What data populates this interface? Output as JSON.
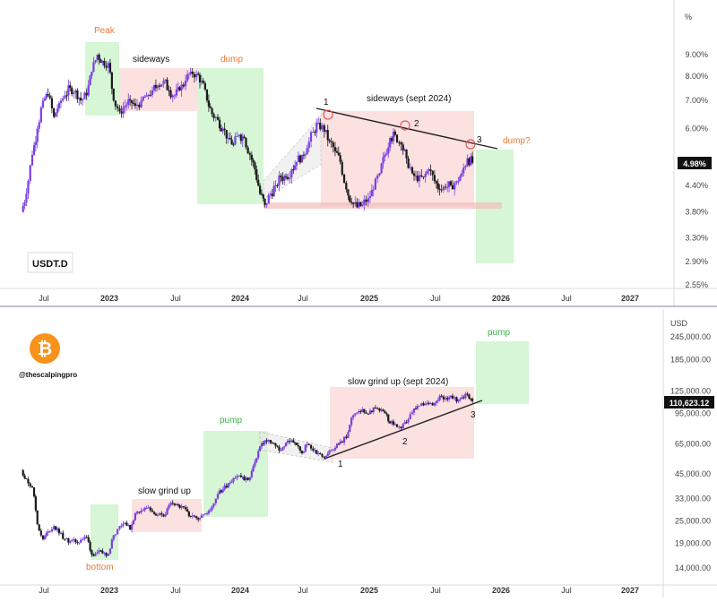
{
  "chart_data": [
    {
      "type": "candlestick",
      "title": "USDT.D",
      "y_axis_unit": "%",
      "y_scale": "log",
      "ylim": [
        2.5,
        11.0
      ],
      "y_ticks": [
        "9.00%",
        "8.00%",
        "7.00%",
        "6.00%",
        "4.40%",
        "3.80%",
        "3.30%",
        "2.90%",
        "2.55%"
      ],
      "y_tick_values": [
        9.0,
        8.0,
        7.0,
        6.0,
        4.4,
        3.8,
        3.3,
        2.9,
        2.55
      ],
      "x_ticks": [
        "Jul",
        "2023",
        "Jul",
        "2024",
        "Jul",
        "2025",
        "Jul",
        "2026",
        "Jul",
        "2027"
      ],
      "x_tick_dates": [
        "2022-07-01",
        "2023-01-01",
        "2023-07-01",
        "2024-01-01",
        "2024-07-01",
        "2025-01-01",
        "2025-07-01",
        "2026-01-01",
        "2026-07-01",
        "2027-01-01"
      ],
      "last_value_label": "4.98%",
      "last_value": 4.98,
      "series": [
        {
          "values": [
            [
              "2022-05-01",
              3.8
            ],
            [
              "2022-05-15",
              4.2
            ],
            [
              "2022-06-01",
              5.2
            ],
            [
              "2022-06-15",
              6.0
            ],
            [
              "2022-07-01",
              7.0
            ],
            [
              "2022-07-15",
              7.2
            ],
            [
              "2022-08-01",
              6.4
            ],
            [
              "2022-08-15",
              6.9
            ],
            [
              "2022-09-01",
              7.2
            ],
            [
              "2022-09-15",
              7.5
            ],
            [
              "2022-10-01",
              7.4
            ],
            [
              "2022-10-15",
              7.0
            ],
            [
              "2022-11-01",
              7.2
            ],
            [
              "2022-11-15",
              8.2
            ],
            [
              "2022-12-01",
              9.0
            ],
            [
              "2022-12-15",
              8.7
            ],
            [
              "2023-01-01",
              8.6
            ],
            [
              "2023-01-15",
              7.0
            ],
            [
              "2023-02-01",
              6.6
            ],
            [
              "2023-02-15",
              6.8
            ],
            [
              "2023-03-01",
              7.0
            ],
            [
              "2023-03-15",
              6.8
            ],
            [
              "2023-04-01",
              7.0
            ],
            [
              "2023-04-15",
              7.2
            ],
            [
              "2023-05-01",
              7.4
            ],
            [
              "2023-05-15",
              7.6
            ],
            [
              "2023-06-01",
              7.8
            ],
            [
              "2023-06-15",
              7.4
            ],
            [
              "2023-07-01",
              7.2
            ],
            [
              "2023-07-15",
              7.4
            ],
            [
              "2023-08-01",
              7.8
            ],
            [
              "2023-08-15",
              8.2
            ],
            [
              "2023-09-01",
              8.1
            ],
            [
              "2023-09-15",
              7.8
            ],
            [
              "2023-10-01",
              7.0
            ],
            [
              "2023-10-15",
              6.5
            ],
            [
              "2023-11-01",
              6.3
            ],
            [
              "2023-11-15",
              6.0
            ],
            [
              "2023-12-01",
              5.7
            ],
            [
              "2023-12-15",
              5.5
            ],
            [
              "2024-01-01",
              5.8
            ],
            [
              "2024-01-15",
              5.7
            ],
            [
              "2024-02-01",
              5.2
            ],
            [
              "2024-02-15",
              4.8
            ],
            [
              "2024-03-01",
              4.2
            ],
            [
              "2024-03-15",
              3.95
            ],
            [
              "2024-04-01",
              4.2
            ],
            [
              "2024-04-15",
              4.4
            ],
            [
              "2024-05-01",
              4.6
            ],
            [
              "2024-05-15",
              4.6
            ],
            [
              "2024-06-01",
              4.8
            ],
            [
              "2024-06-15",
              5.0
            ],
            [
              "2024-07-01",
              5.2
            ],
            [
              "2024-07-15",
              5.4
            ],
            [
              "2024-08-01",
              5.9
            ],
            [
              "2024-08-15",
              6.2
            ],
            [
              "2024-09-01",
              5.9
            ],
            [
              "2024-09-15",
              5.6
            ],
            [
              "2024-10-01",
              5.3
            ],
            [
              "2024-10-15",
              5.0
            ],
            [
              "2024-11-01",
              4.3
            ],
            [
              "2024-11-15",
              4.0
            ],
            [
              "2024-12-01",
              3.9
            ],
            [
              "2024-12-15",
              3.95
            ],
            [
              "2025-01-01",
              4.1
            ],
            [
              "2025-01-15",
              4.3
            ],
            [
              "2025-02-01",
              4.7
            ],
            [
              "2025-02-15",
              5.2
            ],
            [
              "2025-03-01",
              5.7
            ],
            [
              "2025-03-15",
              5.8
            ],
            [
              "2025-04-01",
              5.5
            ],
            [
              "2025-04-15",
              5.1
            ],
            [
              "2025-05-01",
              4.7
            ],
            [
              "2025-05-15",
              4.5
            ],
            [
              "2025-06-01",
              4.6
            ],
            [
              "2025-06-15",
              4.8
            ],
            [
              "2025-07-01",
              4.5
            ],
            [
              "2025-07-15",
              4.3
            ],
            [
              "2025-08-01",
              4.35
            ],
            [
              "2025-08-15",
              4.4
            ],
            [
              "2025-09-01",
              4.5
            ],
            [
              "2025-09-15",
              4.7
            ],
            [
              "2025-10-01",
              5.1
            ],
            [
              "2025-10-15",
              4.98
            ]
          ]
        }
      ],
      "annotations": [
        {
          "text": "Peak",
          "color": "#e8793a"
        },
        {
          "text": "sideways",
          "color": "#111111"
        },
        {
          "text": "dump",
          "color": "#e8793a"
        },
        {
          "text": "sideways (sept 2024)",
          "color": "#111111"
        },
        {
          "text": "dump?",
          "color": "#e8793a"
        },
        {
          "text": "1",
          "color": "#111111"
        },
        {
          "text": "2",
          "color": "#111111"
        },
        {
          "text": "3",
          "color": "#111111"
        }
      ],
      "grid": false,
      "colors": {
        "up": "#7b3fe4",
        "down": "#1a1a1a",
        "green_zone": "#cff5cf",
        "red_zone": "#fbdcdc",
        "dump_label": "#e8793a"
      }
    },
    {
      "type": "candlestick",
      "title": "",
      "y_axis_unit": "USD",
      "y_scale": "log",
      "ylim": [
        12000,
        270000
      ],
      "y_ticks": [
        "245,000.00",
        "185,000.00",
        "125,000.00",
        "95,000.00",
        "65,000.00",
        "45,000.00",
        "33,000.00",
        "25,000.00",
        "19,000.00",
        "14,000.00"
      ],
      "y_tick_values": [
        245000,
        185000,
        125000,
        95000,
        65000,
        45000,
        33000,
        25000,
        19000,
        14000
      ],
      "x_ticks": [
        "Jul",
        "2023",
        "Jul",
        "2024",
        "Jul",
        "2025",
        "Jul",
        "2026",
        "Jul",
        "2027"
      ],
      "x_tick_dates": [
        "2022-07-01",
        "2023-01-01",
        "2023-07-01",
        "2024-01-01",
        "2024-07-01",
        "2025-01-01",
        "2025-07-01",
        "2026-01-01",
        "2026-07-01",
        "2027-01-01"
      ],
      "last_value_label": "110,623.12",
      "last_value": 110623.12,
      "handle": "@thescalpingpro",
      "series": [
        {
          "values": [
            [
              "2022-05-01",
              47000
            ],
            [
              "2022-05-15",
              42000
            ],
            [
              "2022-06-01",
              38000
            ],
            [
              "2022-06-15",
              24000
            ],
            [
              "2022-07-01",
              20000
            ],
            [
              "2022-07-15",
              22000
            ],
            [
              "2022-08-01",
              23500
            ],
            [
              "2022-08-15",
              21500
            ],
            [
              "2022-09-01",
              20000
            ],
            [
              "2022-09-15",
              19500
            ],
            [
              "2022-10-01",
              19300
            ],
            [
              "2022-10-15",
              19800
            ],
            [
              "2022-11-01",
              20500
            ],
            [
              "2022-11-15",
              16500
            ],
            [
              "2022-12-01",
              17000
            ],
            [
              "2022-12-15",
              16800
            ],
            [
              "2023-01-01",
              16700
            ],
            [
              "2023-01-15",
              21000
            ],
            [
              "2023-02-01",
              23500
            ],
            [
              "2023-02-15",
              24500
            ],
            [
              "2023-03-01",
              22500
            ],
            [
              "2023-03-15",
              27500
            ],
            [
              "2023-04-01",
              28500
            ],
            [
              "2023-04-15",
              29500
            ],
            [
              "2023-05-01",
              28000
            ],
            [
              "2023-05-15",
              27000
            ],
            [
              "2023-06-01",
              26500
            ],
            [
              "2023-06-15",
              30500
            ],
            [
              "2023-07-01",
              30500
            ],
            [
              "2023-07-15",
              29500
            ],
            [
              "2023-08-01",
              29000
            ],
            [
              "2023-08-15",
              26500
            ],
            [
              "2023-09-01",
              26000
            ],
            [
              "2023-09-15",
              26800
            ],
            [
              "2023-10-01",
              27500
            ],
            [
              "2023-10-15",
              30000
            ],
            [
              "2023-11-01",
              35000
            ],
            [
              "2023-11-15",
              37000
            ],
            [
              "2023-12-01",
              40000
            ],
            [
              "2023-12-15",
              42500
            ],
            [
              "2024-01-01",
              44000
            ],
            [
              "2024-01-15",
              41500
            ],
            [
              "2024-02-01",
              43000
            ],
            [
              "2024-02-15",
              52000
            ],
            [
              "2024-03-01",
              63000
            ],
            [
              "2024-03-15",
              68000
            ],
            [
              "2024-04-01",
              66000
            ],
            [
              "2024-04-15",
              63500
            ],
            [
              "2024-05-01",
              60000
            ],
            [
              "2024-05-15",
              66000
            ],
            [
              "2024-06-01",
              68000
            ],
            [
              "2024-06-15",
              64000
            ],
            [
              "2024-07-01",
              58000
            ],
            [
              "2024-07-15",
              65000
            ],
            [
              "2024-08-01",
              60000
            ],
            [
              "2024-08-15",
              58000
            ],
            [
              "2024-09-01",
              55000
            ],
            [
              "2024-09-15",
              60000
            ],
            [
              "2024-10-01",
              62000
            ],
            [
              "2024-10-15",
              67000
            ],
            [
              "2024-11-01",
              70000
            ],
            [
              "2024-11-15",
              90000
            ],
            [
              "2024-12-01",
              96000
            ],
            [
              "2024-12-15",
              100000
            ],
            [
              "2025-01-01",
              94000
            ],
            [
              "2025-01-15",
              102000
            ],
            [
              "2025-02-01",
              98000
            ],
            [
              "2025-02-15",
              95000
            ],
            [
              "2025-03-01",
              84000
            ],
            [
              "2025-03-15",
              83000
            ],
            [
              "2025-04-01",
              79000
            ],
            [
              "2025-04-15",
              85000
            ],
            [
              "2025-05-01",
              96000
            ],
            [
              "2025-05-15",
              104000
            ],
            [
              "2025-06-01",
              105000
            ],
            [
              "2025-06-15",
              107000
            ],
            [
              "2025-07-01",
              108000
            ],
            [
              "2025-07-15",
              118000
            ],
            [
              "2025-08-01",
              115000
            ],
            [
              "2025-08-15",
              118000
            ],
            [
              "2025-09-01",
              110000
            ],
            [
              "2025-09-15",
              116000
            ],
            [
              "2025-10-01",
              120000
            ],
            [
              "2025-10-15",
              110623.12
            ]
          ]
        }
      ],
      "annotations": [
        {
          "text": "bottom",
          "color": "#e8793a"
        },
        {
          "text": "slow grind up",
          "color": "#111111"
        },
        {
          "text": "pump",
          "color": "#3fb14a"
        },
        {
          "text": "slow grind up (sept 2024)",
          "color": "#111111"
        },
        {
          "text": "pump",
          "color": "#3fb14a"
        },
        {
          "text": "1",
          "color": "#111111"
        },
        {
          "text": "2",
          "color": "#111111"
        },
        {
          "text": "3",
          "color": "#111111"
        }
      ],
      "grid": false,
      "colors": {
        "up": "#7b3fe4",
        "down": "#1a1a1a",
        "green_zone": "#cff5cf",
        "red_zone": "#fbdcdc",
        "pump_label": "#3fb14a",
        "logo": "#f7931a"
      }
    }
  ],
  "icons": {
    "logo": "bitcoin-icon"
  }
}
